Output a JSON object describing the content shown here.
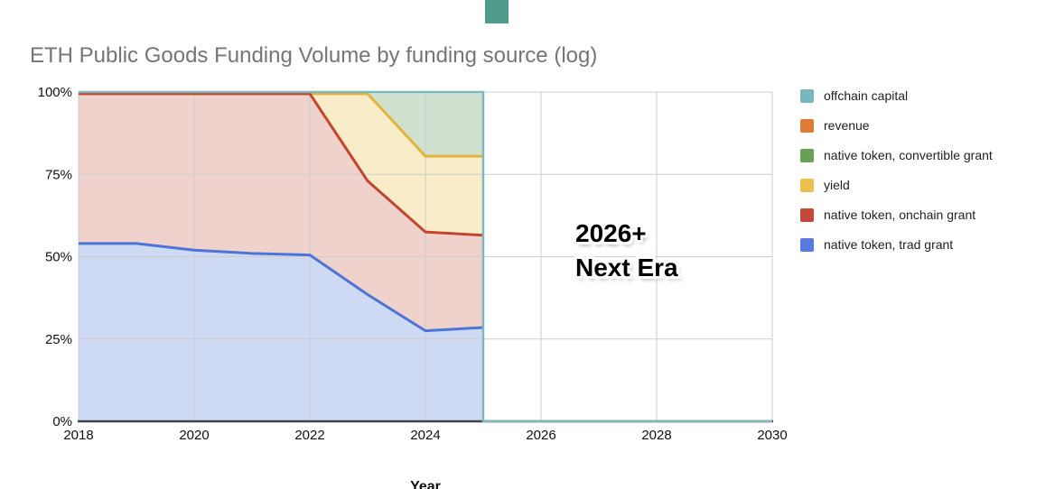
{
  "title": "ETH Public Goods Funding Volume by funding source (log)",
  "annotation": {
    "line1": "2026+",
    "line2": "Next Era"
  },
  "legend": {
    "items": [
      {
        "label": "offchain capital",
        "color": "#79b7bd"
      },
      {
        "label": "revenue",
        "color": "#de7d33"
      },
      {
        "label": "native token, convertible grant",
        "color": "#67a157"
      },
      {
        "label": "yield",
        "color": "#ecc04c"
      },
      {
        "label": "native token, onchain grant",
        "color": "#c4483a"
      },
      {
        "label": "native token, trad grant",
        "color": "#567ae0"
      }
    ]
  },
  "chart_data": {
    "type": "area",
    "stacked": "percent",
    "title": "ETH Public Goods Funding Volume by funding source (log)",
    "xlabel": "Year",
    "ylabel": "",
    "x_range": [
      2018,
      2030
    ],
    "y_range": [
      0,
      100
    ],
    "x_ticks": [
      "2018",
      "2020",
      "2022",
      "2024",
      "2026",
      "2028",
      "2030"
    ],
    "y_ticks": [
      {
        "value": 0,
        "label": "0%"
      },
      {
        "value": 25,
        "label": "25%"
      },
      {
        "value": 50,
        "label": "50%"
      },
      {
        "value": 75,
        "label": "75%"
      },
      {
        "value": 100,
        "label": "100%"
      }
    ],
    "grid": true,
    "legend_position": "right",
    "x": [
      2018,
      2019,
      2020,
      2021,
      2022,
      2023,
      2024,
      2025
    ],
    "series": [
      {
        "name": "native token, trad grant",
        "values": [
          54,
          54,
          52,
          51,
          50.5,
          38.5,
          27.5,
          28.5
        ],
        "line_color": "#4d74d8",
        "fill_color": "#cedaf3",
        "draw_line": true
      },
      {
        "name": "native token, onchain grant",
        "values": [
          45.5,
          45.5,
          47.5,
          48.5,
          49,
          34.5,
          30,
          28
        ],
        "line_color": "#c4452f",
        "fill_color": "#eed2cb",
        "draw_line": true
      },
      {
        "name": "yield",
        "values": [
          0,
          0,
          0,
          0,
          0,
          26.5,
          23,
          24
        ],
        "line_color": "#e3b33c",
        "fill_color": "#f8edc8",
        "draw_line": true
      },
      {
        "name": "native token, convertible grant",
        "values": [
          0,
          0,
          0,
          0,
          0,
          0,
          19,
          19
        ],
        "line_color": "#67a157",
        "fill_color": "#d0e2cf",
        "draw_line": false
      },
      {
        "name": "revenue",
        "values": [
          0,
          0,
          0,
          0,
          0,
          0,
          0,
          0
        ],
        "line_color": "#de7d33",
        "fill_color": "#f4dcc4",
        "draw_line": false
      },
      {
        "name": "offchain capital",
        "values": [
          0.5,
          0.5,
          0.5,
          0.5,
          0.5,
          0.5,
          0.5,
          0.5
        ],
        "line_color": "#7cb8bd",
        "fill_color": "#d3e8e9",
        "draw_line": false,
        "edge_drop_at_end": true,
        "baseline_extend_to": 2030
      }
    ]
  },
  "colors": {
    "axis_line": "#424242",
    "grid_line": "#cccccc",
    "tick_text": "#111111",
    "title_text": "#757575"
  }
}
